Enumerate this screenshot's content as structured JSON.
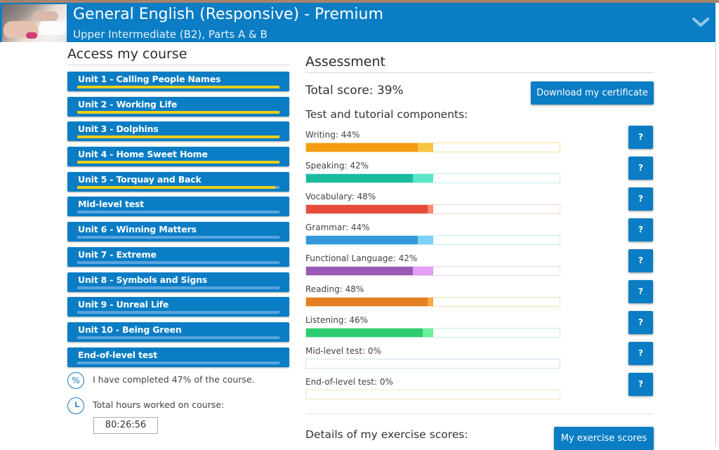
{
  "header": {
    "title": "General English (Responsive) - Premium",
    "subtitle": "Upper Intermediate (B2), Parts A & B",
    "expand_icon": "chevron-down-icon",
    "thumbnail_icon": "course-thumbnail-image"
  },
  "course": {
    "title": "Access my course",
    "units": [
      {
        "label": "Unit 1 - Calling People Names",
        "progress": 100
      },
      {
        "label": "Unit 2 - Working Life",
        "progress": 100
      },
      {
        "label": "Unit 3 - Dolphins",
        "progress": 100
      },
      {
        "label": "Unit 4 - Home Sweet Home",
        "progress": 100
      },
      {
        "label": "Unit 5 - Torquay and Back",
        "progress": 98
      },
      {
        "label": "Mid-level test",
        "progress": 0
      },
      {
        "label": "Unit 6 - Winning Matters",
        "progress": 0
      },
      {
        "label": "Unit 7 - Extreme",
        "progress": 0
      },
      {
        "label": "Unit 8 - Symbols and Signs",
        "progress": 0
      },
      {
        "label": "Unit 9 - Unreal Life",
        "progress": 0
      },
      {
        "label": "Unit 10 - Being Green",
        "progress": 0
      },
      {
        "label": "End-of-level test",
        "progress": 0
      }
    ],
    "completed_text": "I have completed 47% of the course.",
    "completed_icon_glyph": "%",
    "hours_label": "Total hours worked on course:",
    "hours_value": "80:26:56",
    "colors": {
      "unit_bg": "#0a7dc4",
      "progress_fill": "#f0ce16",
      "progress_track": "#5aa4e0"
    }
  },
  "assessment": {
    "title": "Assessment",
    "total_score": "Total score: 39%",
    "download_button": "Download my certificate",
    "components_title": "Test and tutorial components:",
    "help_label": "?",
    "components": [
      {
        "label": "Writing: 44%",
        "score": 44,
        "completed": 50,
        "color": "#f39c12",
        "light": "#f9c342",
        "border": "#f5e0a0"
      },
      {
        "label": "Speaking: 42%",
        "score": 42,
        "completed": 50,
        "color": "#1abc9c",
        "light": "#5ce6c8",
        "border": "#bfeef0"
      },
      {
        "label": "Vocabulary: 48%",
        "score": 48,
        "completed": 50,
        "color": "#e74c3c",
        "light": "#f68a76",
        "border": "#f6d6c8"
      },
      {
        "label": "Grammar: 44%",
        "score": 44,
        "completed": 50,
        "color": "#3498db",
        "light": "#7fcff7",
        "border": "#c6eef8"
      },
      {
        "label": "Functional Language: 42%",
        "score": 42,
        "completed": 50,
        "color": "#9b59b6",
        "light": "#e49ef6",
        "border": "#f0d6f2"
      },
      {
        "label": "Reading: 48%",
        "score": 48,
        "completed": 50,
        "color": "#e67e22",
        "light": "#f5a84a",
        "border": "#f5e2b0"
      },
      {
        "label": "Listening: 46%",
        "score": 46,
        "completed": 50,
        "color": "#2ecc71",
        "light": "#6cf29c",
        "border": "#c6f0e0"
      },
      {
        "label": "Mid-level test: 0%",
        "score": 0,
        "completed": 0,
        "color": "#3498db",
        "light": "#7fcff7",
        "border": "#d2e2f0"
      },
      {
        "label": "End-of-level test: 0%",
        "score": 0,
        "completed": 0,
        "color": "#f39c12",
        "light": "#f9c342",
        "border": "#f3e6c0"
      }
    ],
    "details_title": "Details of my exercise scores:",
    "scores_button": "My exercise scores"
  }
}
